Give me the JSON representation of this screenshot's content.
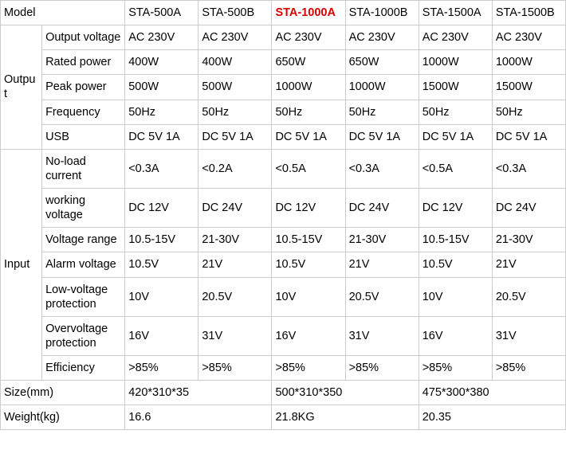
{
  "headers": {
    "model": "Model",
    "cols": [
      "STA-500A",
      "STA-500B",
      "STA-1000A",
      "STA-1000B",
      "STA-1500A",
      "STA-1500B"
    ],
    "highlight_index": 2,
    "highlight_color": "#d60000"
  },
  "groups": [
    {
      "label": "Output",
      "rows": [
        {
          "label": "Output voltage",
          "vals": [
            "AC 230V",
            "AC 230V",
            "AC 230V",
            "AC 230V",
            "AC 230V",
            "AC 230V"
          ]
        },
        {
          "label": "Rated power",
          "vals": [
            "400W",
            "400W",
            "650W",
            "650W",
            "1000W",
            "1000W"
          ]
        },
        {
          "label": "Peak power",
          "vals": [
            "500W",
            "500W",
            "1000W",
            "1000W",
            "1500W",
            "1500W"
          ]
        },
        {
          "label": "Frequency",
          "vals": [
            "50Hz",
            "50Hz",
            "50Hz",
            "50Hz",
            "50Hz",
            "50Hz"
          ]
        },
        {
          "label": "USB",
          "vals": [
            "DC 5V 1A",
            "DC 5V 1A",
            "DC 5V 1A",
            "DC 5V 1A",
            "DC 5V 1A",
            "DC 5V 1A"
          ]
        }
      ]
    },
    {
      "label": "Input",
      "rows": [
        {
          "label": "No-load current",
          "vals": [
            "<0.3A",
            "<0.2A",
            "<0.5A",
            "<0.3A",
            "<0.5A",
            "<0.3A"
          ]
        },
        {
          "label": "working voltage",
          "vals": [
            "DC 12V",
            "DC 24V",
            "DC 12V",
            "DC 24V",
            "DC 12V",
            "DC 24V"
          ]
        },
        {
          "label": "Voltage range",
          "vals": [
            "10.5-15V",
            "21-30V",
            "10.5-15V",
            "21-30V",
            "10.5-15V",
            "21-30V"
          ]
        },
        {
          "label": "Alarm voltage",
          "vals": [
            "10.5V",
            "21V",
            "10.5V",
            "21V",
            "10.5V",
            "21V"
          ]
        },
        {
          "label": "Low-voltage protection",
          "vals": [
            "10V",
            "20.5V",
            "10V",
            "20.5V",
            "10V",
            "20.5V"
          ]
        },
        {
          "label": "Overvoltage protection",
          "vals": [
            "16V",
            "31V",
            "16V",
            "31V",
            "16V",
            "31V"
          ]
        },
        {
          "label": "Efficiency",
          "vals": [
            ">85%",
            ">85%",
            ">85%",
            ">85%",
            ">85%",
            ">85%"
          ]
        }
      ]
    }
  ],
  "footer": [
    {
      "label": "Size(mm)",
      "vals": [
        "420*310*35",
        "500*310*350",
        "475*300*380"
      ]
    },
    {
      "label": "Weight(kg)",
      "vals": [
        "16.6",
        "21.8KG",
        "20.35"
      ]
    }
  ],
  "style": {
    "font_family": "Arial",
    "base_fontsize_pt": 11,
    "text_color": "#000000",
    "border_color": "#cccccc",
    "background": "#ffffff"
  }
}
